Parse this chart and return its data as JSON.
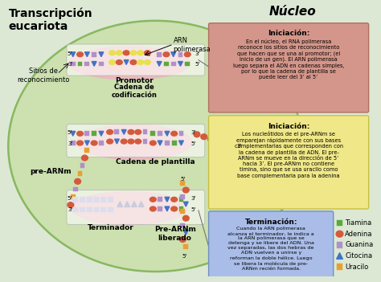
{
  "title_left": "Transcripción\neucariota",
  "title_right": "Núcleo",
  "bg_color": "#dde8d0",
  "nucleus_color": "#cde0b0",
  "labels": {
    "arn_polimerasa": "ARN\npolimerasa",
    "promotor": "Promotor",
    "sitios": "Sitios de\nreconocimiento",
    "cadena_cod": "Cadena de\ncodificación",
    "pre_arnm": "pre-ARNm",
    "cadena_plantilla": "Cadena de plantilla",
    "terminador": "Terminador",
    "pre_arnm_lib": "Pre-ARNm\nliberado"
  },
  "box1_title": "Iniciación:",
  "box1_text": "En el núcleo, el RNA polimerasa\nreconoce los sitios de reconocimiento\nque hacen que se una al promotor; (el\ninicio de un gen). El ARN polimerasa\nluego separa el ADN en cadenas simples,\npor lo que la cadena de plantilla se\npuede leer del 3’ al 5’",
  "box2_title": "Iniciación:",
  "box2_text": "Los nucleótidos de el pre-ARNm se\nemparejan rápidamente con sus bases\ncomplementarias que corresponden con\nla cadena de plantilla de ADN. El pre-\nARNm se mueve en la dirección de 5’\nhacia 3’. El pre-ARNm no contiene\ntimina, sino que se usa uracilo como\nbase complementaria para la adenina",
  "box3_title": "Terminación:",
  "box3_text": "Cuando la ARN polimerasa\nalcanza el terminador, le indica a\nla ARN polimerasa que se\ndetenga y se libere del ADN. Una\nvez separadas, las dos hebras de\nADN vuelven a unirse y\nreforman la doble hélice. Luego\nse libera la molécula de pre-\nARNm recién formada.",
  "legend": [
    {
      "label": "Tiamina",
      "color": "#5aaa3c",
      "shape": "square"
    },
    {
      "label": "Adenina",
      "color": "#d45a3c",
      "shape": "circle"
    },
    {
      "label": "Guanina",
      "color": "#b090c8",
      "shape": "square"
    },
    {
      "label": "Citocina",
      "color": "#4472c4",
      "shape": "triangle"
    },
    {
      "label": "Uracilo",
      "color": "#e8a030",
      "shape": "square"
    }
  ],
  "tiamina": "#5aaa3c",
  "adenina": "#d45a3c",
  "guanina": "#b090c8",
  "citocina": "#4472c4",
  "uracilo": "#e8a030",
  "yellow_nuc": "#e8e050"
}
